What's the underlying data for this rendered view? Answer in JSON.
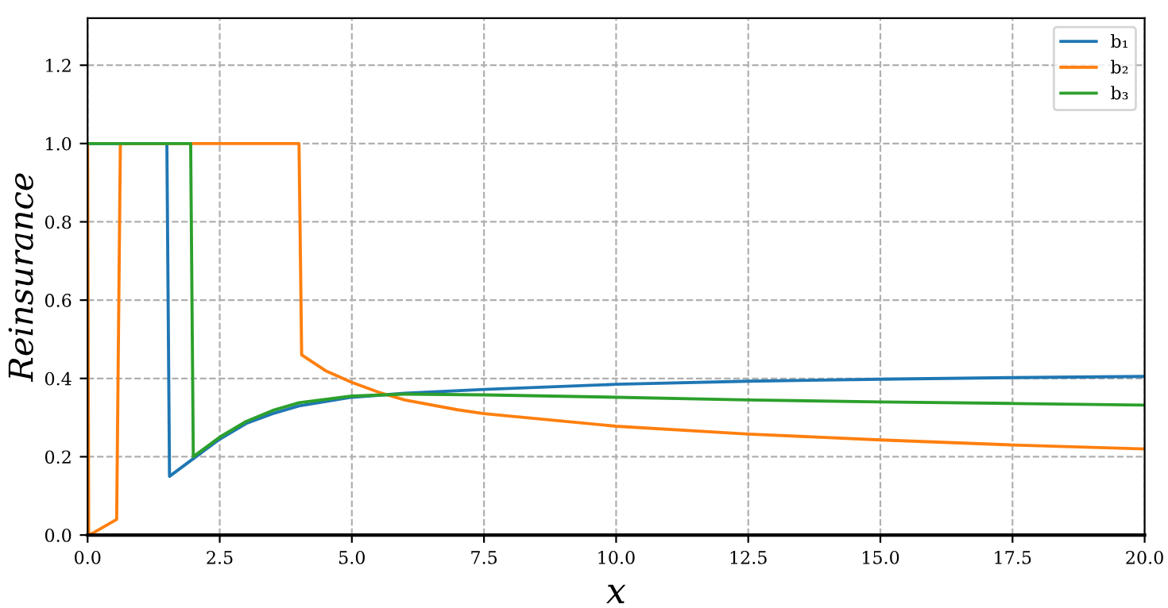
{
  "chart_data": {
    "type": "line",
    "xlabel": "x",
    "ylabel": "Reinsurance",
    "xlim": [
      0,
      20
    ],
    "ylim": [
      0,
      1.32
    ],
    "xticks": [
      {
        "value": 0,
        "label": "0.0"
      },
      {
        "value": 2.5,
        "label": "2.5"
      },
      {
        "value": 5,
        "label": "5.0"
      },
      {
        "value": 7.5,
        "label": "7.5"
      },
      {
        "value": 10,
        "label": "10.0"
      },
      {
        "value": 12.5,
        "label": "12.5"
      },
      {
        "value": 15,
        "label": "15.0"
      },
      {
        "value": 17.5,
        "label": "17.5"
      },
      {
        "value": 20,
        "label": "20.0"
      }
    ],
    "yticks": [
      {
        "value": 0,
        "label": "0.0"
      },
      {
        "value": 0.2,
        "label": "0.2"
      },
      {
        "value": 0.4,
        "label": "0.4"
      },
      {
        "value": 0.6,
        "label": "0.6"
      },
      {
        "value": 0.8,
        "label": "0.8"
      },
      {
        "value": 1.0,
        "label": "1.0"
      },
      {
        "value": 1.2,
        "label": "1.2"
      }
    ],
    "grid": true,
    "legend": "top right",
    "line_style": "solid",
    "marker": "none",
    "series": [
      {
        "name": "b₁",
        "color": "#1f77b4",
        "x": [
          0,
          1.5,
          1.55,
          2.0,
          2.5,
          3.0,
          3.5,
          4.0,
          5.0,
          6.0,
          7.5,
          10.0,
          12.5,
          15.0,
          17.5,
          20.0
        ],
        "values": [
          1.0,
          1.0,
          0.15,
          0.195,
          0.245,
          0.285,
          0.31,
          0.33,
          0.352,
          0.362,
          0.372,
          0.385,
          0.393,
          0.398,
          0.402,
          0.405
        ]
      },
      {
        "name": "b₂",
        "color": "#ff7f0e",
        "x": [
          0,
          0.02,
          0.1,
          0.55,
          0.62,
          4.0,
          4.05,
          4.5,
          5.0,
          5.5,
          6.0,
          7.0,
          7.5,
          10.0,
          12.5,
          15.0,
          17.5,
          20.0
        ],
        "values": [
          1.0,
          0.0,
          0.005,
          0.04,
          1.0,
          1.0,
          0.46,
          0.42,
          0.39,
          0.365,
          0.345,
          0.32,
          0.31,
          0.278,
          0.258,
          0.243,
          0.23,
          0.22
        ]
      },
      {
        "name": "b₃",
        "color": "#2ca02c",
        "x": [
          0,
          1.95,
          2.0,
          2.5,
          3.0,
          3.5,
          4.0,
          5.0,
          6.0,
          7.5,
          10.0,
          12.5,
          15.0,
          17.5,
          20.0
        ],
        "values": [
          1.0,
          1.0,
          0.2,
          0.25,
          0.29,
          0.318,
          0.338,
          0.355,
          0.36,
          0.358,
          0.352,
          0.345,
          0.34,
          0.336,
          0.332
        ]
      }
    ]
  }
}
